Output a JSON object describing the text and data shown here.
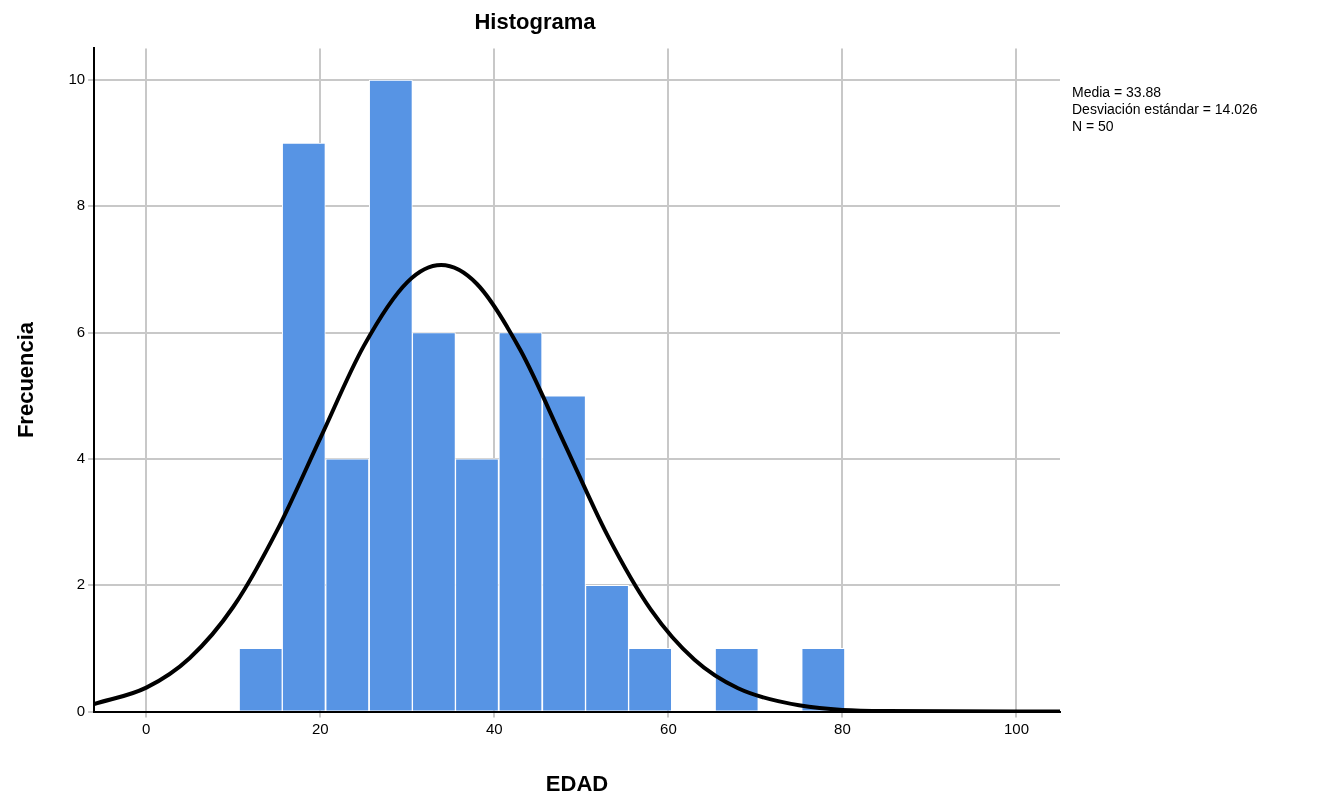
{
  "chart_data": {
    "type": "histogram",
    "title": "Histograma",
    "xlabel": "EDAD",
    "ylabel": "Frecuencia",
    "bins": [
      10.7,
      15.6,
      20.6,
      25.6,
      30.6,
      35.5,
      40.5,
      45.5,
      50.5,
      55.4,
      60.4,
      65.4,
      70.3,
      75.3,
      80.3
    ],
    "series": [
      {
        "color": "#5794e4",
        "values": [
          1,
          9,
          4,
          10,
          6,
          4,
          6,
          5,
          2,
          1,
          0,
          1,
          0,
          1
        ]
      },
      {
        "type": "line",
        "color": "#000000",
        "x": [
          -6,
          0,
          5,
          10,
          15,
          20,
          25,
          30,
          33.88,
          38,
          43,
          48,
          53,
          58,
          63,
          68,
          75,
          85,
          105
        ],
        "values": [
          0.12,
          0.38,
          0.85,
          1.66,
          2.86,
          4.33,
          5.79,
          6.8,
          7.07,
          6.77,
          5.72,
          4.26,
          2.79,
          1.61,
          0.82,
          0.37,
          0.1,
          0.01,
          0
        ]
      }
    ],
    "xlim": [
      -6,
      105
    ],
    "xticks": [
      0,
      20,
      40,
      60,
      80,
      100
    ],
    "ylim": [
      0,
      10.5
    ],
    "yticks": [
      0,
      2,
      4,
      6,
      8,
      10
    ],
    "grid": true,
    "legend": false,
    "annotations": [
      "Media = 33.88",
      "Desviación estándar = 14.026",
      "N = 50"
    ]
  }
}
